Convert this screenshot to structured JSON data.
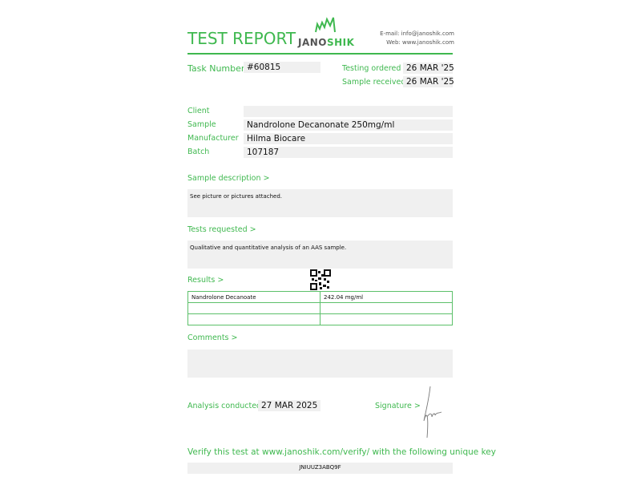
{
  "header": {
    "title": "TEST REPORT",
    "logo_text_dark": "JANO",
    "logo_text_green": "SHIK",
    "email": "E-mail: info@janoshik.com",
    "web": "Web: www.janoshik.com"
  },
  "task": {
    "label": "Task Number",
    "value": "#60815"
  },
  "dates": {
    "ordered_label": "Testing ordered  >",
    "ordered": "26 MAR '25",
    "received_label": "Sample received >",
    "received": "26 MAR '25"
  },
  "fields": [
    {
      "label": "Client",
      "value": ""
    },
    {
      "label": "Sample",
      "value": "Nandrolone Decanonate 250mg/ml"
    },
    {
      "label": "Manufacturer",
      "value": "Hilma Biocare"
    },
    {
      "label": "Batch",
      "value": "107187"
    }
  ],
  "sample_description": {
    "label": "Sample description >",
    "text": "See picture or pictures attached."
  },
  "tests_requested": {
    "label": "Tests requested >",
    "text": "Qualitative and quantitative analysis of an AAS sample."
  },
  "results": {
    "label": "Results >",
    "rows": [
      [
        "Nandrolone Decanoate",
        "242.04 mg/ml"
      ],
      [
        "",
        ""
      ],
      [
        "",
        ""
      ]
    ]
  },
  "comments": {
    "label": "Comments >",
    "text": ""
  },
  "analysis": {
    "label": "Analysis conducted >",
    "value": "27 MAR 2025"
  },
  "signature": {
    "label": "Signature >"
  },
  "verify": {
    "text": "Verify this test at www.janoshik.com/verify/ with the following unique key",
    "key": "JNIUUZ3ABQ9F"
  },
  "colors": {
    "accent": "#3fb84f",
    "field_bg": "#f0f0f0"
  }
}
